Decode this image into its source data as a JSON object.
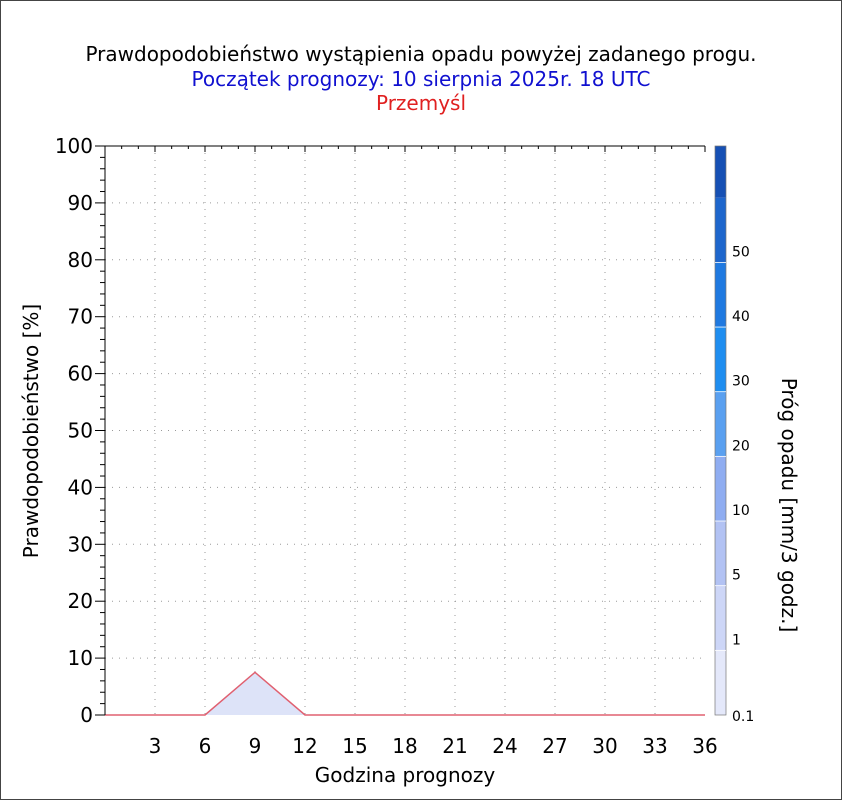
{
  "title": "Prawdopodobieństwo wystąpienia opadu powyżej zadanego progu.",
  "subtitle": "Początek prognozy: 10 sierpnia 2025r. 18 UTC",
  "location": "Przemyśl",
  "colors": {
    "title": "#000000",
    "subtitle": "#1010d0",
    "location": "#e02020",
    "series_line": "#e06070"
  },
  "chart_data": {
    "type": "area",
    "title": "Prawdopodobieństwo wystąpienia opadu powyżej zadanego progu.",
    "subtitle": "Początek prognozy: 10 sierpnia 2025r. 18 UTC",
    "location": "Przemyśl",
    "xlabel": "Godzina prognozy",
    "ylabel": "Prawdopodobieństwo [%]",
    "xlim": [
      0,
      36
    ],
    "ylim": [
      0,
      100
    ],
    "xticks": [
      3,
      6,
      9,
      12,
      15,
      18,
      21,
      24,
      27,
      30,
      33,
      36
    ],
    "yticks": [
      0,
      10,
      20,
      30,
      40,
      50,
      60,
      70,
      80,
      90,
      100
    ],
    "grid": true,
    "series": [
      {
        "threshold": 0.1,
        "color": "#dde3f8",
        "x": [
          0,
          3,
          6,
          9,
          12,
          15,
          18,
          21,
          24,
          27,
          30,
          33,
          36
        ],
        "y": [
          0,
          0,
          0,
          7.5,
          0,
          0,
          0,
          0,
          0,
          0,
          0,
          0,
          0
        ]
      }
    ],
    "colorbar": {
      "label": "Próg opadu [mm/3 godz.]",
      "tick_labels": [
        "0.1",
        "1",
        "5",
        "10",
        "20",
        "30",
        "40",
        "50"
      ],
      "colors": [
        "#e4e8fa",
        "#cdd6f7",
        "#b2c2f3",
        "#8fadf1",
        "#5aa0f0",
        "#1f8ef0",
        "#1f79e0",
        "#1e66cc",
        "#1650b4"
      ]
    }
  }
}
